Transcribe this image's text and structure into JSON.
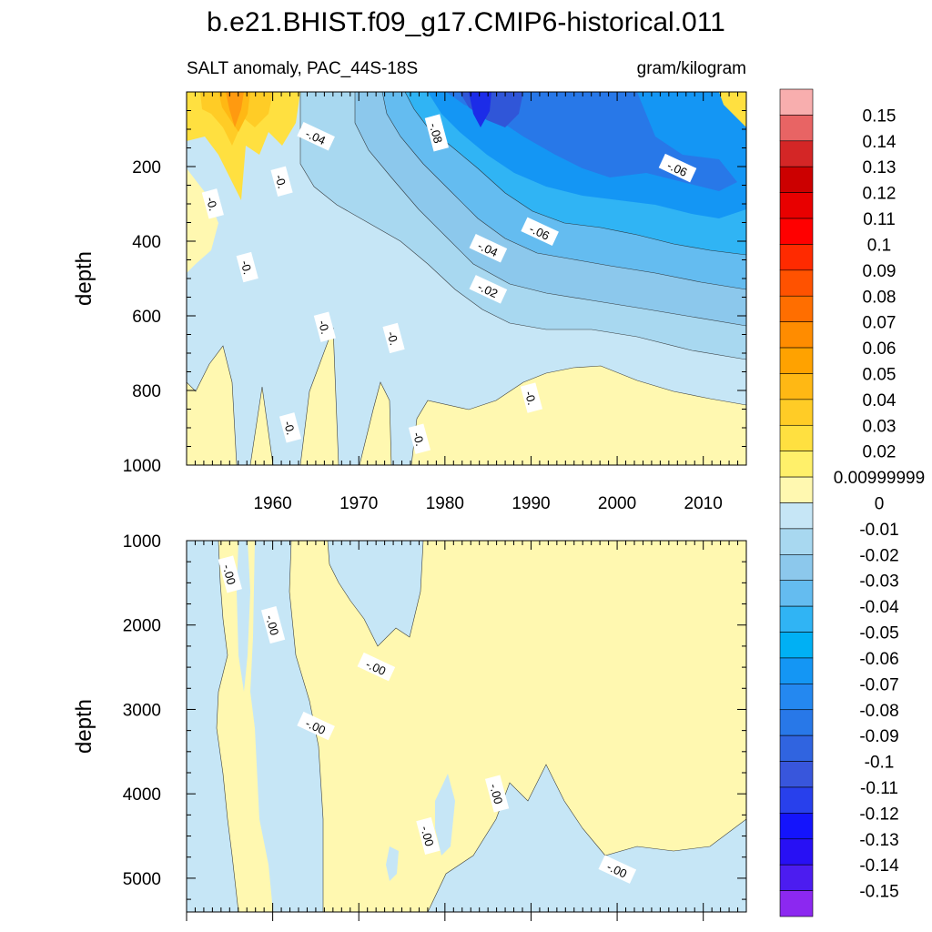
{
  "chart_data": {
    "type": "heatmap",
    "title": "b.e21.BHIST.f09_g17.CMIP6-historical.011",
    "subtitle_left": "SALT anomaly, PAC_44S-18S",
    "subtitle_right": "gram/kilogram",
    "xlim": [
      1950,
      2015
    ],
    "x_ticks": [
      1960,
      1970,
      1980,
      1990,
      2000,
      2010
    ],
    "x_tick_labels": [
      "1960",
      "1970",
      "1980",
      "1990",
      "2000",
      "2010"
    ],
    "panels": [
      {
        "name": "upper",
        "ylabel": "depth",
        "ylim": [
          0,
          1000
        ],
        "y_ticks": [
          200,
          400,
          600,
          800,
          1000
        ],
        "y_tick_labels": [
          "200",
          "400",
          "600",
          "800",
          "1000"
        ],
        "contour_labels": [
          {
            "text": "-.04",
            "x": 1965,
            "y": 120
          },
          {
            "text": "-.08",
            "x": 1979,
            "y": 110
          },
          {
            "text": "-.06",
            "x": 2007,
            "y": 205
          },
          {
            "text": "-.06",
            "x": 1991,
            "y": 375
          },
          {
            "text": "-.04",
            "x": 1985,
            "y": 420
          },
          {
            "text": "-.02",
            "x": 1985,
            "y": 530
          },
          {
            "text": "-0.",
            "x": 1953,
            "y": 300
          },
          {
            "text": "-0.",
            "x": 1961,
            "y": 240
          },
          {
            "text": "-0.",
            "x": 1957,
            "y": 470
          },
          {
            "text": "-0.",
            "x": 1966,
            "y": 630
          },
          {
            "text": "-0.",
            "x": 1974,
            "y": 660
          },
          {
            "text": "-0.",
            "x": 1990,
            "y": 820
          },
          {
            "text": "-0.",
            "x": 1962,
            "y": 900
          },
          {
            "text": "-0.",
            "x": 1977,
            "y": 930
          }
        ]
      },
      {
        "name": "lower",
        "ylabel": "depth",
        "ylim": [
          1000,
          5400
        ],
        "y_ticks": [
          1000,
          2000,
          3000,
          4000,
          5000
        ],
        "y_tick_labels": [
          "1000",
          "2000",
          "3000",
          "4000",
          "5000"
        ],
        "contour_labels": [
          {
            "text": "-.00",
            "x": 1955,
            "y": 1400
          },
          {
            "text": "-.00",
            "x": 1960,
            "y": 2000
          },
          {
            "text": "-.00",
            "x": 1972,
            "y": 2500
          },
          {
            "text": "-.00",
            "x": 1965,
            "y": 3200
          },
          {
            "text": "-.00",
            "x": 1986,
            "y": 4000
          },
          {
            "text": "-.00",
            "x": 1978,
            "y": 4500
          },
          {
            "text": "-.00",
            "x": 2000,
            "y": 4900
          }
        ]
      }
    ],
    "colorbar": {
      "levels": [
        "0.15",
        "0.14",
        "0.13",
        "0.12",
        "0.11",
        "0.1",
        "0.09",
        "0.08",
        "0.07",
        "0.06",
        "0.05",
        "0.04",
        "0.03",
        "0.02",
        "0.00999999",
        "0",
        "-0.01",
        "-0.02",
        "-0.03",
        "-0.04",
        "-0.05",
        "-0.06",
        "-0.07",
        "-0.08",
        "-0.09",
        "-0.1",
        "-0.11",
        "-0.12",
        "-0.13",
        "-0.14",
        "-0.15"
      ],
      "colors": [
        "#f8aeae",
        "#e86464",
        "#d42626",
        "#cc0000",
        "#e80000",
        "#ff0000",
        "#ff2a00",
        "#ff5200",
        "#ff6e00",
        "#ff8c00",
        "#ffa200",
        "#ffb814",
        "#ffcc26",
        "#ffe040",
        "#fff06a",
        "#fff8b0",
        "#c6e6f6",
        "#a8d8f0",
        "#8cc8ec",
        "#64bcf0",
        "#30b4f4",
        "#00b0f4",
        "#1496f4",
        "#2488f0",
        "#2878e8",
        "#3064e0",
        "#3856dc",
        "#2840ec",
        "#1414fc",
        "#2810f4",
        "#4c1cf0",
        "#8c28f0"
      ]
    }
  }
}
